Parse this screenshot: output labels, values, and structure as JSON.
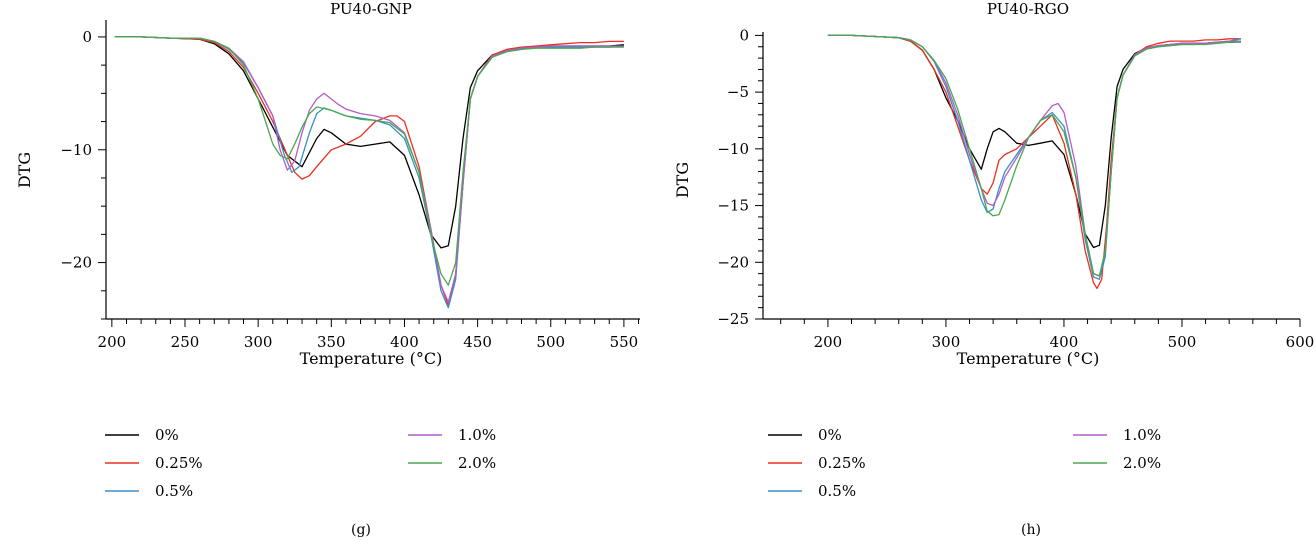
{
  "figure": {
    "colors": {
      "axis": "#000000",
      "background": "#ffffff"
    }
  },
  "chart_data": [
    {
      "panel_label": "(g)",
      "type": "line",
      "title": "PU40-GNP",
      "xlabel": "Temperature (°C)",
      "ylabel": "DTG",
      "xlim": [
        196,
        561
      ],
      "ylim": [
        -25,
        1.5
      ],
      "xticks": [
        200,
        250,
        300,
        350,
        400,
        450,
        500,
        550
      ],
      "yticks": [
        0,
        -10,
        -20
      ],
      "legend": "below-plot",
      "grid": false,
      "series": [
        {
          "name": "0%",
          "color": "#000000",
          "x": [
            202,
            220,
            240,
            260,
            270,
            280,
            290,
            300,
            310,
            320,
            330,
            340,
            345,
            350,
            360,
            370,
            380,
            390,
            400,
            410,
            418,
            425,
            430,
            435,
            440,
            445,
            450,
            460,
            470,
            480,
            490,
            500,
            510,
            520,
            530,
            540,
            550
          ],
          "y": [
            0,
            0,
            -0.1,
            -0.2,
            -0.6,
            -1.5,
            -3,
            -5.5,
            -8,
            -10.5,
            -11.5,
            -9,
            -8.2,
            -8.5,
            -9.5,
            -9.7,
            -9.5,
            -9.3,
            -10.5,
            -14,
            -17.5,
            -18.7,
            -18.5,
            -15,
            -9,
            -4.5,
            -3,
            -1.6,
            -1.2,
            -1,
            -0.9,
            -0.8,
            -0.8,
            -0.8,
            -0.8,
            -0.8,
            -0.7
          ]
        },
        {
          "name": "0.25%",
          "color": "#e8301f",
          "x": [
            202,
            220,
            240,
            260,
            270,
            280,
            290,
            300,
            310,
            320,
            325,
            330,
            335,
            340,
            350,
            360,
            370,
            380,
            390,
            395,
            400,
            410,
            418,
            425,
            430,
            435,
            440,
            445,
            450,
            460,
            470,
            480,
            490,
            500,
            510,
            520,
            530,
            540,
            550
          ],
          "y": [
            0,
            0,
            -0.1,
            -0.2,
            -0.5,
            -1.3,
            -2.7,
            -5,
            -7.5,
            -10.5,
            -12,
            -12.6,
            -12.3,
            -11.5,
            -10,
            -9.5,
            -8.8,
            -7.5,
            -7,
            -7,
            -7.5,
            -11.5,
            -17,
            -22,
            -23.8,
            -21,
            -13,
            -5.5,
            -3.5,
            -1.6,
            -1.1,
            -0.9,
            -0.8,
            -0.7,
            -0.6,
            -0.5,
            -0.5,
            -0.4,
            -0.4
          ]
        },
        {
          "name": "0.5%",
          "color": "#3a8fc6",
          "x": [
            202,
            220,
            240,
            260,
            270,
            280,
            290,
            300,
            310,
            318,
            323,
            328,
            335,
            340,
            345,
            350,
            360,
            370,
            380,
            390,
            400,
            410,
            418,
            425,
            430,
            435,
            440,
            445,
            450,
            460,
            470,
            480,
            490,
            500,
            510,
            520,
            530,
            540,
            550
          ],
          "y": [
            0,
            0,
            -0.1,
            -0.1,
            -0.4,
            -1.1,
            -2.3,
            -4.5,
            -7,
            -10.5,
            -12,
            -11.5,
            -8.5,
            -6.8,
            -6.3,
            -6.5,
            -7,
            -7.2,
            -7.4,
            -7.8,
            -9,
            -12.5,
            -17.5,
            -22.5,
            -24,
            -21.5,
            -13,
            -5.5,
            -3.5,
            -1.8,
            -1.3,
            -1.1,
            -0.9,
            -0.9,
            -0.9,
            -0.9,
            -0.9,
            -0.9,
            -0.8
          ]
        },
        {
          "name": "1.0%",
          "color": "#b35cc8",
          "x": [
            202,
            220,
            240,
            260,
            270,
            280,
            290,
            300,
            310,
            315,
            320,
            325,
            330,
            335,
            340,
            345,
            350,
            355,
            360,
            370,
            380,
            390,
            400,
            410,
            418,
            425,
            430,
            435,
            440,
            445,
            450,
            460,
            470,
            480,
            490,
            500,
            510,
            520,
            530,
            540,
            550
          ],
          "y": [
            0,
            0,
            -0.1,
            -0.1,
            -0.4,
            -1,
            -2.2,
            -4.5,
            -7,
            -10,
            -11.8,
            -11,
            -8.5,
            -6.5,
            -5.5,
            -5,
            -5.5,
            -6,
            -6.4,
            -6.8,
            -7,
            -7.4,
            -8.5,
            -12,
            -17,
            -22,
            -23.5,
            -21,
            -13,
            -5.5,
            -3.5,
            -1.7,
            -1.2,
            -1,
            -0.9,
            -0.8,
            -0.8,
            -0.8,
            -0.8,
            -0.8,
            -0.8
          ]
        },
        {
          "name": "2.0%",
          "color": "#48a950",
          "x": [
            202,
            220,
            240,
            260,
            270,
            280,
            290,
            300,
            305,
            310,
            315,
            320,
            325,
            330,
            335,
            340,
            350,
            360,
            370,
            380,
            390,
            400,
            410,
            418,
            425,
            430,
            435,
            440,
            445,
            450,
            460,
            470,
            480,
            490,
            500,
            510,
            520,
            530,
            540,
            550
          ],
          "y": [
            0,
            0,
            -0.1,
            -0.1,
            -0.4,
            -1,
            -2.5,
            -5.5,
            -7.5,
            -9.5,
            -10.5,
            -10.8,
            -9.5,
            -8,
            -6.8,
            -6.2,
            -6.5,
            -7,
            -7.3,
            -7.4,
            -7.6,
            -8.6,
            -12,
            -17.5,
            -21,
            -22,
            -20,
            -12,
            -5.5,
            -3.5,
            -1.8,
            -1.3,
            -1.1,
            -1,
            -1,
            -1,
            -1,
            -0.9,
            -0.9,
            -0.9
          ]
        }
      ]
    },
    {
      "panel_label": "(h)",
      "type": "line",
      "title": "PU40-RGO",
      "xlabel": "Temperature (°C)",
      "ylabel": "DTG",
      "xlim": [
        145,
        600
      ],
      "ylim": [
        -25,
        0.3
      ],
      "xticks": [
        200,
        300,
        400,
        500,
        600
      ],
      "yticks": [
        0,
        -5,
        -10,
        -15,
        -20,
        -25
      ],
      "legend": "below-plot",
      "grid": false,
      "series": [
        {
          "name": "0%",
          "color": "#000000",
          "x": [
            200,
            220,
            240,
            260,
            270,
            280,
            290,
            300,
            310,
            320,
            330,
            335,
            340,
            345,
            350,
            360,
            370,
            380,
            390,
            400,
            410,
            418,
            425,
            430,
            435,
            440,
            445,
            450,
            460,
            470,
            480,
            490,
            500,
            510,
            520,
            530,
            540,
            545
          ],
          "y": [
            0,
            0,
            -0.1,
            -0.2,
            -0.5,
            -1.3,
            -3,
            -5.5,
            -7.5,
            -10,
            -11.8,
            -10,
            -8.5,
            -8.2,
            -8.5,
            -9.5,
            -9.7,
            -9.5,
            -9.3,
            -10.5,
            -14,
            -17.5,
            -18.7,
            -18.5,
            -15,
            -9,
            -4.5,
            -3,
            -1.6,
            -1.1,
            -0.9,
            -0.8,
            -0.7,
            -0.7,
            -0.7,
            -0.6,
            -0.6,
            -0.6
          ]
        },
        {
          "name": "0.25%",
          "color": "#e8301f",
          "x": [
            200,
            220,
            240,
            260,
            270,
            280,
            290,
            300,
            310,
            320,
            330,
            335,
            340,
            345,
            350,
            360,
            370,
            380,
            390,
            400,
            410,
            418,
            425,
            428,
            432,
            436,
            440,
            445,
            450,
            460,
            470,
            480,
            490,
            500,
            510,
            520,
            530,
            540,
            550
          ],
          "y": [
            0,
            0,
            -0.1,
            -0.2,
            -0.5,
            -1.3,
            -3,
            -5,
            -8,
            -11,
            -13.5,
            -14,
            -13,
            -11,
            -10.5,
            -10,
            -9,
            -8,
            -7,
            -9.5,
            -14,
            -19,
            -21.8,
            -22.3,
            -21.5,
            -17,
            -11,
            -5.5,
            -3.5,
            -1.7,
            -1,
            -0.7,
            -0.5,
            -0.5,
            -0.5,
            -0.4,
            -0.4,
            -0.3,
            -0.3
          ]
        },
        {
          "name": "0.5%",
          "color": "#3a8fc6",
          "x": [
            200,
            220,
            240,
            260,
            270,
            280,
            290,
            300,
            310,
            320,
            330,
            335,
            340,
            345,
            350,
            360,
            370,
            380,
            390,
            400,
            410,
            418,
            425,
            430,
            435,
            440,
            445,
            450,
            460,
            470,
            480,
            490,
            500,
            510,
            520,
            530,
            540,
            550
          ],
          "y": [
            0,
            0,
            -0.1,
            -0.2,
            -0.4,
            -1,
            -2.3,
            -4.5,
            -7.5,
            -11,
            -14.5,
            -15.6,
            -15.3,
            -13.5,
            -12,
            -10.5,
            -9,
            -7.5,
            -6.8,
            -8,
            -12.5,
            -18,
            -21.3,
            -21.5,
            -19.5,
            -12,
            -5.5,
            -3.5,
            -1.8,
            -1.2,
            -1,
            -0.9,
            -0.8,
            -0.8,
            -0.7,
            -0.6,
            -0.5,
            -0.3
          ]
        },
        {
          "name": "1.0%",
          "color": "#b35cc8",
          "x": [
            200,
            220,
            240,
            260,
            270,
            280,
            290,
            300,
            310,
            320,
            330,
            335,
            340,
            345,
            350,
            360,
            370,
            380,
            390,
            395,
            400,
            410,
            418,
            425,
            430,
            435,
            440,
            445,
            450,
            460,
            470,
            480,
            490,
            500,
            510,
            520,
            530,
            540,
            550
          ],
          "y": [
            0,
            0,
            -0.1,
            -0.2,
            -0.4,
            -1,
            -2.2,
            -4.2,
            -7,
            -10.5,
            -13.5,
            -14.8,
            -15,
            -14,
            -12.5,
            -10.8,
            -9,
            -7.5,
            -6.2,
            -6,
            -6.8,
            -11.5,
            -17.5,
            -21,
            -21.2,
            -19,
            -12,
            -5.5,
            -3.5,
            -1.7,
            -1.1,
            -0.9,
            -0.8,
            -0.7,
            -0.7,
            -0.7,
            -0.6,
            -0.5,
            -0.5
          ]
        },
        {
          "name": "2.0%",
          "color": "#48a950",
          "x": [
            200,
            220,
            240,
            260,
            270,
            280,
            290,
            300,
            310,
            320,
            330,
            335,
            340,
            345,
            350,
            360,
            370,
            380,
            390,
            400,
            410,
            418,
            425,
            430,
            435,
            440,
            445,
            450,
            460,
            470,
            480,
            490,
            500,
            510,
            520,
            530,
            540,
            550
          ],
          "y": [
            0,
            0,
            -0.1,
            -0.2,
            -0.4,
            -1,
            -2.2,
            -3.8,
            -6.5,
            -10,
            -13.5,
            -15.5,
            -15.9,
            -15.8,
            -14.5,
            -11.5,
            -9,
            -7.5,
            -7,
            -8.5,
            -12.5,
            -17.5,
            -21,
            -21.2,
            -19,
            -12,
            -5.5,
            -3.5,
            -1.8,
            -1.2,
            -1,
            -0.9,
            -0.8,
            -0.8,
            -0.8,
            -0.7,
            -0.6,
            -0.6
          ]
        }
      ]
    }
  ]
}
